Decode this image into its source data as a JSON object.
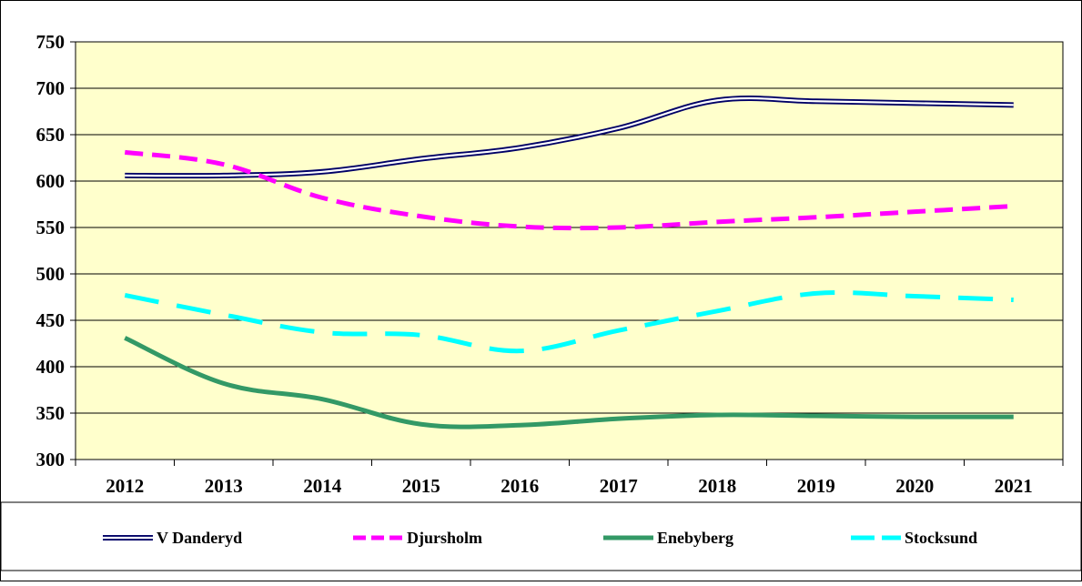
{
  "chart_data": {
    "type": "line",
    "categories": [
      "2012",
      "2013",
      "2014",
      "2015",
      "2016",
      "2017",
      "2018",
      "2019",
      "2020",
      "2021"
    ],
    "ylim": [
      300,
      750
    ],
    "yticks": [
      "300",
      "350",
      "400",
      "450",
      "500",
      "550",
      "600",
      "650",
      "700",
      "750"
    ],
    "grid": true,
    "legend_position": "bottom",
    "plot_background": "#FFFFCC",
    "series": [
      {
        "name": "V Danderyd",
        "values": [
          606,
          606,
          610,
          624,
          636,
          657,
          687,
          686,
          684,
          682
        ],
        "color": "#000066",
        "style": "double"
      },
      {
        "name": "Djursholm",
        "values": [
          631,
          618,
          582,
          562,
          551,
          550,
          556,
          561,
          567,
          573
        ],
        "color": "#FF00FF",
        "style": "dashed"
      },
      {
        "name": "Enebyberg",
        "values": [
          431,
          382,
          365,
          338,
          337,
          344,
          348,
          347,
          346,
          346
        ],
        "color": "#339966",
        "style": "solid"
      },
      {
        "name": "Stocksund",
        "values": [
          477,
          456,
          437,
          434,
          417,
          439,
          460,
          479,
          476,
          472
        ],
        "color": "#00FFFF",
        "style": "longdash"
      }
    ]
  }
}
